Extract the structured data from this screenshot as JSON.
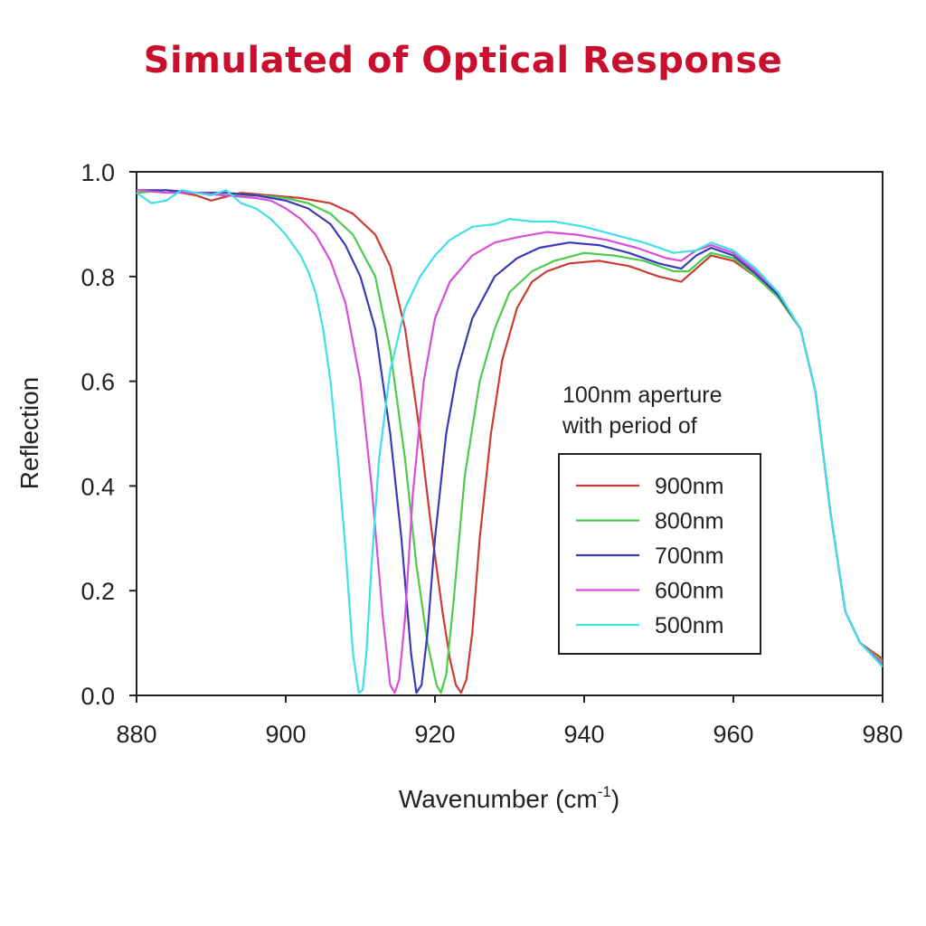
{
  "page": {
    "title": "Simulated of Optical Response",
    "title_color": "#c8102e"
  },
  "chart_data": {
    "type": "line",
    "xlabel": "Wavenumber (cm",
    "xlabel_sup": "-1",
    "xlabel_close": ")",
    "ylabel": "Reflection",
    "xlim": [
      880,
      980
    ],
    "ylim": [
      0.0,
      1.0
    ],
    "x_ticks": [
      880,
      900,
      920,
      940,
      960,
      980
    ],
    "x_tick_labels": [
      "880",
      "900",
      "920",
      "940",
      "960",
      "980"
    ],
    "y_ticks": [
      0.0,
      0.2,
      0.4,
      0.6,
      0.8,
      1.0
    ],
    "y_tick_labels": [
      "0.0",
      "0.2",
      "0.4",
      "0.6",
      "0.8",
      "1.0"
    ],
    "grid": false,
    "legend_title_lines": [
      "100nm aperture",
      "with period of"
    ],
    "legend_placement": "right",
    "series": [
      {
        "name": "900nm",
        "color": "#cc3b32",
        "x": [
          880,
          884,
          888,
          890,
          894,
          898,
          902,
          906,
          909,
          912,
          914,
          916,
          918,
          919.5,
          921,
          922,
          922.8,
          923.5,
          924.2,
          925,
          926,
          927.5,
          929,
          931,
          933,
          935,
          938,
          942,
          946,
          950,
          953,
          955,
          957,
          960,
          963,
          966,
          969,
          971,
          973,
          975,
          977,
          980
        ],
        "y": [
          0.96,
          0.965,
          0.955,
          0.945,
          0.96,
          0.955,
          0.95,
          0.94,
          0.92,
          0.88,
          0.82,
          0.7,
          0.5,
          0.32,
          0.16,
          0.07,
          0.02,
          0.005,
          0.03,
          0.12,
          0.3,
          0.5,
          0.64,
          0.74,
          0.79,
          0.81,
          0.825,
          0.83,
          0.82,
          0.8,
          0.79,
          0.815,
          0.84,
          0.83,
          0.8,
          0.76,
          0.7,
          0.58,
          0.35,
          0.16,
          0.1,
          0.07
        ]
      },
      {
        "name": "800nm",
        "color": "#4ccc4c",
        "x": [
          880,
          884,
          888,
          892,
          896,
          900,
          903,
          906,
          909,
          912,
          914,
          916,
          917.5,
          919,
          920.2,
          920.8,
          921.5,
          922.5,
          924,
          926,
          928,
          930,
          933,
          936,
          940,
          944,
          948,
          952,
          954,
          956,
          957,
          960,
          963,
          966,
          969,
          971,
          973,
          975,
          977,
          980
        ],
        "y": [
          0.96,
          0.965,
          0.96,
          0.955,
          0.955,
          0.95,
          0.94,
          0.92,
          0.88,
          0.8,
          0.66,
          0.45,
          0.25,
          0.1,
          0.02,
          0.005,
          0.04,
          0.18,
          0.42,
          0.6,
          0.7,
          0.77,
          0.81,
          0.83,
          0.845,
          0.84,
          0.83,
          0.81,
          0.81,
          0.835,
          0.845,
          0.835,
          0.8,
          0.76,
          0.7,
          0.58,
          0.35,
          0.16,
          0.1,
          0.065
        ]
      },
      {
        "name": "700nm",
        "color": "#3a3ab8",
        "x": [
          880,
          884,
          888,
          892,
          896,
          900,
          903,
          906,
          908,
          910,
          912,
          914,
          915.5,
          916.8,
          917.5,
          918.2,
          919,
          920,
          921.5,
          923,
          925,
          928,
          931,
          934,
          938,
          942,
          946,
          950,
          953,
          955,
          957,
          960,
          963,
          966,
          969,
          971,
          973,
          975,
          977,
          980
        ],
        "y": [
          0.965,
          0.965,
          0.96,
          0.96,
          0.955,
          0.945,
          0.93,
          0.9,
          0.86,
          0.8,
          0.7,
          0.5,
          0.3,
          0.08,
          0.005,
          0.02,
          0.12,
          0.3,
          0.5,
          0.62,
          0.72,
          0.8,
          0.835,
          0.855,
          0.865,
          0.86,
          0.845,
          0.825,
          0.815,
          0.84,
          0.855,
          0.84,
          0.805,
          0.765,
          0.7,
          0.58,
          0.35,
          0.16,
          0.1,
          0.06
        ]
      },
      {
        "name": "600nm",
        "color": "#d94dd9",
        "x": [
          880,
          884,
          888,
          892,
          896,
          898,
          900,
          902,
          904,
          906,
          908,
          910,
          911.5,
          913,
          914,
          914.6,
          915.2,
          916,
          917,
          918.5,
          920,
          922,
          925,
          928,
          931,
          935,
          939,
          943,
          947,
          951,
          953,
          955,
          957,
          960,
          963,
          966,
          969,
          971,
          973,
          975,
          977,
          980
        ],
        "y": [
          0.965,
          0.96,
          0.96,
          0.955,
          0.95,
          0.945,
          0.93,
          0.91,
          0.88,
          0.83,
          0.75,
          0.6,
          0.4,
          0.15,
          0.02,
          0.005,
          0.03,
          0.15,
          0.38,
          0.6,
          0.72,
          0.79,
          0.84,
          0.865,
          0.875,
          0.885,
          0.88,
          0.87,
          0.855,
          0.835,
          0.83,
          0.85,
          0.86,
          0.845,
          0.81,
          0.77,
          0.7,
          0.58,
          0.35,
          0.16,
          0.1,
          0.06
        ]
      },
      {
        "name": "500nm",
        "color": "#40e0e8",
        "x": [
          880,
          882,
          884,
          886,
          888,
          890,
          892,
          894,
          896,
          898,
          900,
          901,
          902,
          903,
          904,
          905,
          906,
          907,
          908,
          909,
          909.8,
          910.3,
          910.8,
          911.5,
          912.5,
          914,
          916,
          918,
          920,
          922,
          925,
          928,
          930,
          933,
          936,
          940,
          944,
          948,
          952,
          955,
          957,
          960,
          963,
          966,
          969,
          971,
          973,
          975,
          977,
          980
        ],
        "y": [
          0.96,
          0.94,
          0.945,
          0.965,
          0.96,
          0.955,
          0.965,
          0.94,
          0.93,
          0.91,
          0.88,
          0.86,
          0.84,
          0.81,
          0.77,
          0.7,
          0.6,
          0.45,
          0.28,
          0.08,
          0.005,
          0.01,
          0.08,
          0.25,
          0.45,
          0.62,
          0.74,
          0.8,
          0.84,
          0.87,
          0.895,
          0.9,
          0.91,
          0.905,
          0.905,
          0.895,
          0.88,
          0.865,
          0.845,
          0.85,
          0.865,
          0.85,
          0.815,
          0.77,
          0.7,
          0.58,
          0.35,
          0.16,
          0.1,
          0.055
        ]
      }
    ]
  }
}
